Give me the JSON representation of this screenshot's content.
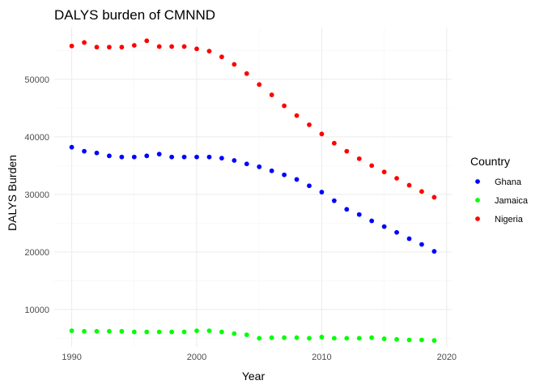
{
  "chart_data": {
    "type": "scatter",
    "title": "DALYS burden of CMNND",
    "xlabel": "Year",
    "ylabel": "DALYS Burden",
    "xlim": [
      1988.6,
      2020.4
    ],
    "ylim": [
      3500,
      59000
    ],
    "xticks": [
      1990,
      2000,
      2010,
      2020
    ],
    "xtick_labels": [
      "1990",
      "2000",
      "2010",
      "2020"
    ],
    "yticks": [
      10000,
      20000,
      30000,
      40000,
      50000
    ],
    "ytick_labels": [
      "10000",
      "20000",
      "30000",
      "40000",
      "50000"
    ],
    "grid": true,
    "legend": {
      "title": "Country",
      "position": "right"
    },
    "x": [
      1990,
      1991,
      1992,
      1993,
      1994,
      1995,
      1996,
      1997,
      1998,
      1999,
      2000,
      2001,
      2002,
      2003,
      2004,
      2005,
      2006,
      2007,
      2008,
      2009,
      2010,
      2011,
      2012,
      2013,
      2014,
      2015,
      2016,
      2017,
      2018,
      2019
    ],
    "series": [
      {
        "name": "Ghana",
        "color": "#0000ff",
        "values": [
          38200,
          37500,
          37200,
          36700,
          36500,
          36500,
          36700,
          37000,
          36500,
          36500,
          36500,
          36500,
          36300,
          35900,
          35300,
          34800,
          34100,
          33400,
          32600,
          31500,
          30400,
          28900,
          27400,
          26500,
          25400,
          24400,
          23400,
          22300,
          21300,
          20100
        ]
      },
      {
        "name": "Jamaica",
        "color": "#00ff00",
        "values": [
          6300,
          6200,
          6200,
          6200,
          6200,
          6100,
          6100,
          6100,
          6100,
          6100,
          6300,
          6300,
          6100,
          5800,
          5600,
          5000,
          5100,
          5100,
          5100,
          5000,
          5200,
          5000,
          5000,
          5000,
          5100,
          4900,
          4800,
          4700,
          4700,
          4600
        ]
      },
      {
        "name": "Nigeria",
        "color": "#ff0000",
        "values": [
          55800,
          56400,
          55600,
          55600,
          55600,
          55900,
          56700,
          55700,
          55700,
          55700,
          55300,
          54900,
          53900,
          52600,
          51000,
          49100,
          47300,
          45400,
          43700,
          42100,
          40500,
          38900,
          37500,
          36200,
          35000,
          33900,
          32800,
          31600,
          30500,
          29500
        ]
      }
    ]
  }
}
